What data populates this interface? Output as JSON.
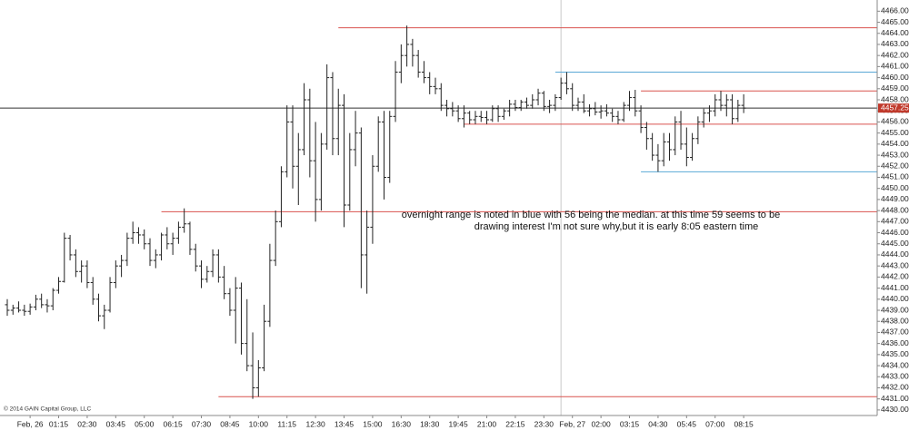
{
  "chart_data": {
    "type": "ohlc",
    "annotation": [
      "overnight range is noted in blue with 56 being the median. at this time 59 seems to be",
      "drawing interest  I'm not sure why,but it is early 8:05 eastern time"
    ],
    "copyright": "© 2014 GAIN Capital Group, LLC",
    "bar_color": "#222222",
    "ylim": [
      4429.5,
      4466.6
    ],
    "xlim": [
      -1,
      153
    ],
    "yticks": [
      {
        "value": 4430,
        "label": "4430.00"
      },
      {
        "value": 4431,
        "label": "4431.00"
      },
      {
        "value": 4432,
        "label": "4432.00"
      },
      {
        "value": 4433,
        "label": "4433.00"
      },
      {
        "value": 4434,
        "label": "4434.00"
      },
      {
        "value": 4435,
        "label": "4435.00"
      },
      {
        "value": 4436,
        "label": "4436.00"
      },
      {
        "value": 4437,
        "label": "4437.00"
      },
      {
        "value": 4438,
        "label": "4438.00"
      },
      {
        "value": 4439,
        "label": "4439.00"
      },
      {
        "value": 4440,
        "label": "4440.00"
      },
      {
        "value": 4441,
        "label": "4441.00"
      },
      {
        "value": 4442,
        "label": "4442.00"
      },
      {
        "value": 4443,
        "label": "4443.00"
      },
      {
        "value": 4444,
        "label": "4444.00"
      },
      {
        "value": 4445,
        "label": "4445.00"
      },
      {
        "value": 4446,
        "label": "4446.00"
      },
      {
        "value": 4447,
        "label": "4447.00"
      },
      {
        "value": 4448,
        "label": "4448.00"
      },
      {
        "value": 4449,
        "label": "4449.00"
      },
      {
        "value": 4450,
        "label": "4450.00"
      },
      {
        "value": 4451,
        "label": "4451.00"
      },
      {
        "value": 4452,
        "label": "4452.00"
      },
      {
        "value": 4453,
        "label": "4453.00"
      },
      {
        "value": 4454,
        "label": "4454.00"
      },
      {
        "value": 4455,
        "label": "4455.00"
      },
      {
        "value": 4456,
        "label": "4456.00"
      },
      {
        "value": 4457,
        "label": "4457.00"
      },
      {
        "value": 4458,
        "label": "4458.00"
      },
      {
        "value": 4459,
        "label": "4459.00"
      },
      {
        "value": 4460,
        "label": "4460.00"
      },
      {
        "value": 4461,
        "label": "4461.00"
      },
      {
        "value": 4462,
        "label": "4462.00"
      },
      {
        "value": 4463,
        "label": "4463.00"
      },
      {
        "value": 4464,
        "label": "4464.00"
      },
      {
        "value": 4465,
        "label": "4465.00"
      },
      {
        "value": 4466,
        "label": "4466.00"
      }
    ],
    "last_price": {
      "value": 4457.25,
      "label": "4457.25"
    },
    "xticks": [
      {
        "value": 4,
        "label": "Feb, 26"
      },
      {
        "value": 9,
        "label": "01:15"
      },
      {
        "value": 14,
        "label": "02:30"
      },
      {
        "value": 19,
        "label": "03:45"
      },
      {
        "value": 24,
        "label": "05:00"
      },
      {
        "value": 29,
        "label": "06:15"
      },
      {
        "value": 34,
        "label": "07:30"
      },
      {
        "value": 39,
        "label": "08:45"
      },
      {
        "value": 44,
        "label": "10:00"
      },
      {
        "value": 49,
        "label": "11:15"
      },
      {
        "value": 54,
        "label": "12:30"
      },
      {
        "value": 59,
        "label": "13:45"
      },
      {
        "value": 64,
        "label": "15:00"
      },
      {
        "value": 69,
        "label": "16:30"
      },
      {
        "value": 74,
        "label": "18:30"
      },
      {
        "value": 79,
        "label": "19:45"
      },
      {
        "value": 84,
        "label": "21:00"
      },
      {
        "value": 89,
        "label": "22:15"
      },
      {
        "value": 94,
        "label": "23:30"
      },
      {
        "value": 99,
        "label": "Feb, 27"
      },
      {
        "value": 104,
        "label": "02:00"
      },
      {
        "value": 109,
        "label": "03:15"
      },
      {
        "value": 114,
        "label": "04:30"
      },
      {
        "value": 119,
        "label": "05:45"
      },
      {
        "value": 124,
        "label": "07:00"
      },
      {
        "value": 129,
        "label": "08:15"
      }
    ],
    "separator": 97,
    "levels": [
      {
        "value": 4464.5,
        "from": 58,
        "color": "#d9534f"
      },
      {
        "value": 4460.5,
        "from": 96,
        "color": "#5aa8d6"
      },
      {
        "value": 4458.8,
        "from": 111,
        "color": "#d9534f"
      },
      {
        "value": 4455.8,
        "from": 80,
        "color": "#d9534f"
      },
      {
        "value": 4451.5,
        "from": 111,
        "color": "#5aa8d6"
      },
      {
        "value": 4447.9,
        "from": 27,
        "color": "#d9534f"
      },
      {
        "value": 4431.2,
        "from": 37,
        "color": "#d9534f"
      }
    ],
    "ohlc": [
      [
        4439.5,
        4440,
        4438.5,
        4439
      ],
      [
        4439,
        4439.5,
        4438.6,
        4439.2
      ],
      [
        4439.2,
        4439.8,
        4438.8,
        4439
      ],
      [
        4439,
        4439.5,
        4438.5,
        4438.9
      ],
      [
        4438.9,
        4439.6,
        4438.6,
        4439.3
      ],
      [
        4439.3,
        4440.4,
        4439,
        4440
      ],
      [
        4440,
        4440.5,
        4439.2,
        4439.5
      ],
      [
        4439.5,
        4440,
        4438.8,
        4439.4
      ],
      [
        4439.4,
        4441,
        4439,
        4440.8
      ],
      [
        4440.8,
        4442,
        4440.5,
        4441.6
      ],
      [
        4441.6,
        4446,
        4441.5,
        4445.5
      ],
      [
        4445.5,
        4445.8,
        4443.5,
        4444
      ],
      [
        4444,
        4444.5,
        4442,
        4442.5
      ],
      [
        4442.5,
        4443.5,
        4441.5,
        4443
      ],
      [
        4443,
        4443.5,
        4441,
        4441.5
      ],
      [
        4441.5,
        4442,
        4439.5,
        4440
      ],
      [
        4440,
        4440.5,
        4438,
        4438.5
      ],
      [
        4438.5,
        4439.5,
        4437.3,
        4439
      ],
      [
        4439,
        4442,
        4438.8,
        4441.5
      ],
      [
        4441.5,
        4443.5,
        4441,
        4443
      ],
      [
        4443,
        4444,
        4442,
        4443.5
      ],
      [
        4443.5,
        4446,
        4443,
        4445.5
      ],
      [
        4445.5,
        4447,
        4445,
        4446
      ],
      [
        4446,
        4446.5,
        4445,
        4445.8
      ],
      [
        4445.8,
        4446.3,
        4444.5,
        4445
      ],
      [
        4445,
        4445.5,
        4443,
        4443.5
      ],
      [
        4443.5,
        4444.5,
        4442.8,
        4444
      ],
      [
        4444,
        4446,
        4443.5,
        4445.8
      ],
      [
        4445.8,
        4446.5,
        4444.5,
        4445
      ],
      [
        4445,
        4446,
        4444,
        4445.5
      ],
      [
        4445.5,
        4447,
        4445,
        4446.5
      ],
      [
        4446.5,
        4448.2,
        4446,
        4446.8
      ],
      [
        4446.8,
        4447,
        4444,
        4444.5
      ],
      [
        4444.5,
        4445,
        4442.5,
        4443
      ],
      [
        4443,
        4443.5,
        4441,
        4441.8
      ],
      [
        4441.8,
        4443,
        4441.5,
        4442.5
      ],
      [
        4442.5,
        4444.5,
        4442,
        4444
      ],
      [
        4444,
        4444.5,
        4441.5,
        4442
      ],
      [
        4442,
        4443,
        4440,
        4440.5
      ],
      [
        4440.5,
        4441,
        4438.5,
        4439
      ],
      [
        4439,
        4442,
        4436,
        4441
      ],
      [
        4441,
        4441.5,
        4435,
        4436
      ],
      [
        4436,
        4440,
        4433.5,
        4434
      ],
      [
        4434,
        4437,
        4431,
        4432
      ],
      [
        4432,
        4434.5,
        4431.2,
        4433.8
      ],
      [
        4433.8,
        4439.5,
        4433.5,
        4438
      ],
      [
        4438,
        4445,
        4437.5,
        4443.5
      ],
      [
        4443.5,
        4448,
        4443,
        4447
      ],
      [
        4447,
        4452,
        4446.5,
        4451.5
      ],
      [
        4451.5,
        4457.5,
        4451,
        4456
      ],
      [
        4456,
        4457.5,
        4450,
        4452
      ],
      [
        4452,
        4455,
        4448.5,
        4453.5
      ],
      [
        4453.5,
        4459.5,
        4453,
        4458
      ],
      [
        4458,
        4459,
        4451,
        4452.5
      ],
      [
        4452.5,
        4456,
        4447,
        4449
      ],
      [
        4449,
        4455,
        4448,
        4454
      ],
      [
        4454,
        4461.2,
        4453.5,
        4460
      ],
      [
        4460,
        4460.5,
        4453,
        4454.5
      ],
      [
        4454.5,
        4459,
        4453,
        4457.5
      ],
      [
        4457.5,
        4458.5,
        4446.5,
        4448.5
      ],
      [
        4448.5,
        4455,
        4448,
        4453.5
      ],
      [
        4453.5,
        4457,
        4452,
        4455
      ],
      [
        4455,
        4455.5,
        4441,
        4444
      ],
      [
        4444,
        4448,
        4440.5,
        4446.5
      ],
      [
        4446.5,
        4453,
        4445,
        4452
      ],
      [
        4452,
        4456.5,
        4451.5,
        4456
      ],
      [
        4456,
        4457,
        4449,
        4451
      ],
      [
        4451,
        4457,
        4450.5,
        4456.5
      ],
      [
        4456.5,
        4461.5,
        4456,
        4460.5
      ],
      [
        4460.5,
        4463,
        4459.5,
        4462
      ],
      [
        4462,
        4464.7,
        4461,
        4463
      ],
      [
        4463,
        4463.5,
        4461,
        4462
      ],
      [
        4462,
        4462.5,
        4460,
        4460.5
      ],
      [
        4460.5,
        4461.5,
        4459.5,
        4460
      ],
      [
        4460,
        4460.5,
        4458.5,
        4459.2
      ],
      [
        4459.2,
        4460,
        4458.5,
        4459
      ],
      [
        4459,
        4459.5,
        4457,
        4457.5
      ],
      [
        4457.5,
        4458,
        4456.5,
        4457.2
      ],
      [
        4457.2,
        4457.8,
        4456.5,
        4457
      ],
      [
        4457,
        4457.5,
        4456,
        4456.3
      ],
      [
        4456.3,
        4457.5,
        4455.5,
        4456.8
      ],
      [
        4456.8,
        4457,
        4455.8,
        4456.2
      ],
      [
        4456.2,
        4457,
        4455.8,
        4456.5
      ],
      [
        4456.5,
        4457,
        4456,
        4456.4
      ],
      [
        4456.4,
        4457,
        4455.8,
        4456.2
      ],
      [
        4456.2,
        4457.5,
        4456,
        4457.2
      ],
      [
        4457.2,
        4457.5,
        4456,
        4456.5
      ],
      [
        4456.5,
        4457.2,
        4456.2,
        4457
      ],
      [
        4457,
        4458,
        4456.5,
        4457.6
      ],
      [
        4457.6,
        4458,
        4457,
        4457.3
      ],
      [
        4457.3,
        4458,
        4457,
        4457.8
      ],
      [
        4457.8,
        4458.2,
        4457.2,
        4457.5
      ],
      [
        4457.5,
        4458.5,
        4457.2,
        4458
      ],
      [
        4458,
        4459,
        4457.5,
        4458.6
      ],
      [
        4458.6,
        4458.8,
        4457,
        4457.4
      ],
      [
        4457.4,
        4458,
        4456.8,
        4457.5
      ],
      [
        4457.5,
        4458.5,
        4457,
        4458.2
      ],
      [
        4458.2,
        4460,
        4458,
        4459.5
      ],
      [
        4459.5,
        4460.5,
        4458.5,
        4459
      ],
      [
        4459,
        4459.5,
        4457,
        4457.5
      ],
      [
        4457.5,
        4458.2,
        4457,
        4457.8
      ],
      [
        4457.8,
        4458.5,
        4456.8,
        4457
      ],
      [
        4457,
        4457.6,
        4456.5,
        4457.2
      ],
      [
        4457.2,
        4457.8,
        4456.6,
        4456.9
      ],
      [
        4456.9,
        4457.5,
        4456.3,
        4457
      ],
      [
        4457,
        4457.6,
        4456.5,
        4456.8
      ],
      [
        4456.8,
        4457.2,
        4456,
        4456.5
      ],
      [
        4456.5,
        4457,
        4455.8,
        4456.2
      ],
      [
        4456.2,
        4457.8,
        4456,
        4457.5
      ],
      [
        4457.5,
        4458.8,
        4457,
        4458.2
      ],
      [
        4458.2,
        4458.9,
        4456.5,
        4457
      ],
      [
        4457,
        4457.5,
        4455,
        4455.5
      ],
      [
        4455.5,
        4456,
        4453.5,
        4454.5
      ],
      [
        4454.5,
        4455,
        4452.5,
        4453
      ],
      [
        4453,
        4454,
        4451.5,
        4452.5
      ],
      [
        4452.5,
        4455,
        4452,
        4454.2
      ],
      [
        4454.2,
        4455,
        4452.5,
        4453.5
      ],
      [
        4453.5,
        4456.5,
        4453,
        4456
      ],
      [
        4456,
        4457,
        4453.5,
        4454
      ],
      [
        4454,
        4455.5,
        4452,
        4452.8
      ],
      [
        4452.8,
        4455,
        4452.5,
        4454.5
      ],
      [
        4454.5,
        4456.5,
        4454,
        4456
      ],
      [
        4456,
        4457.2,
        4455.5,
        4456.8
      ],
      [
        4456.8,
        4457.5,
        4456,
        4457
      ],
      [
        4457,
        4458.5,
        4456.5,
        4458
      ],
      [
        4458,
        4458.8,
        4457,
        4457.5
      ],
      [
        4457.5,
        4458.5,
        4456.5,
        4458
      ],
      [
        4458,
        4458.5,
        4455.8,
        4456.3
      ],
      [
        4456.3,
        4458,
        4456,
        4457.5
      ],
      [
        4457.5,
        4458.5,
        4456.8,
        4457.25
      ]
    ]
  }
}
